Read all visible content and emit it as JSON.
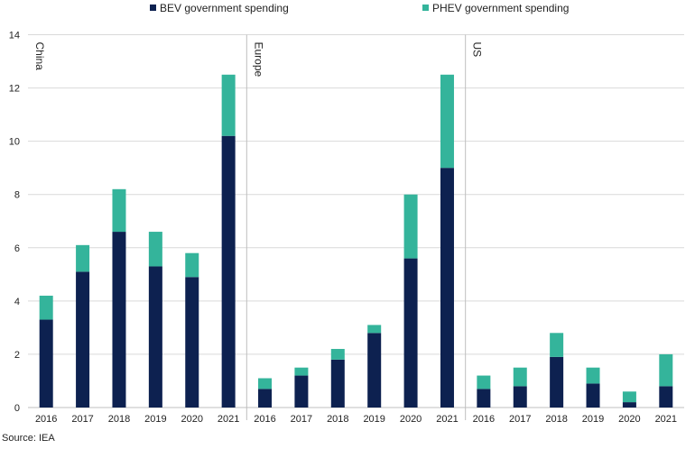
{
  "chart_data": {
    "type": "bar",
    "stacked": true,
    "legend": {
      "placement": "top",
      "entries": [
        "BEV government spending",
        "PHEV government spending"
      ]
    },
    "colors": {
      "BEV": "#0d2150",
      "PHEV": "#34b49b",
      "grid": "#d9d9d9",
      "axis": "#bfbfbf"
    },
    "ylim": [
      0,
      14
    ],
    "yticks": [
      "0",
      "2",
      "4",
      "6",
      "8",
      "10",
      "12",
      "14"
    ],
    "grid": true,
    "panels": [
      {
        "name": "China",
        "categories": [
          "2016",
          "2017",
          "2018",
          "2019",
          "2020",
          "2021"
        ],
        "series": [
          {
            "name": "BEV government spending",
            "values": [
              3.3,
              5.1,
              6.6,
              5.3,
              4.9,
              10.2
            ]
          },
          {
            "name": "PHEV government spending",
            "values": [
              0.9,
              1.0,
              1.6,
              1.3,
              0.9,
              2.3
            ]
          }
        ]
      },
      {
        "name": "Europe",
        "categories": [
          "2016",
          "2017",
          "2018",
          "2019",
          "2020",
          "2021"
        ],
        "series": [
          {
            "name": "BEV government spending",
            "values": [
              0.7,
              1.2,
              1.8,
              2.8,
              5.6,
              9.0
            ]
          },
          {
            "name": "PHEV government spending",
            "values": [
              0.4,
              0.3,
              0.4,
              0.3,
              2.4,
              3.5
            ]
          }
        ]
      },
      {
        "name": "US",
        "categories": [
          "2016",
          "2017",
          "2018",
          "2019",
          "2020",
          "2021"
        ],
        "series": [
          {
            "name": "BEV government spending",
            "values": [
              0.7,
              0.8,
              1.9,
              0.9,
              0.2,
              0.8
            ]
          },
          {
            "name": "PHEV government spending",
            "values": [
              0.5,
              0.7,
              0.9,
              0.6,
              0.4,
              1.2
            ]
          }
        ]
      }
    ]
  },
  "source": "Source: IEA"
}
